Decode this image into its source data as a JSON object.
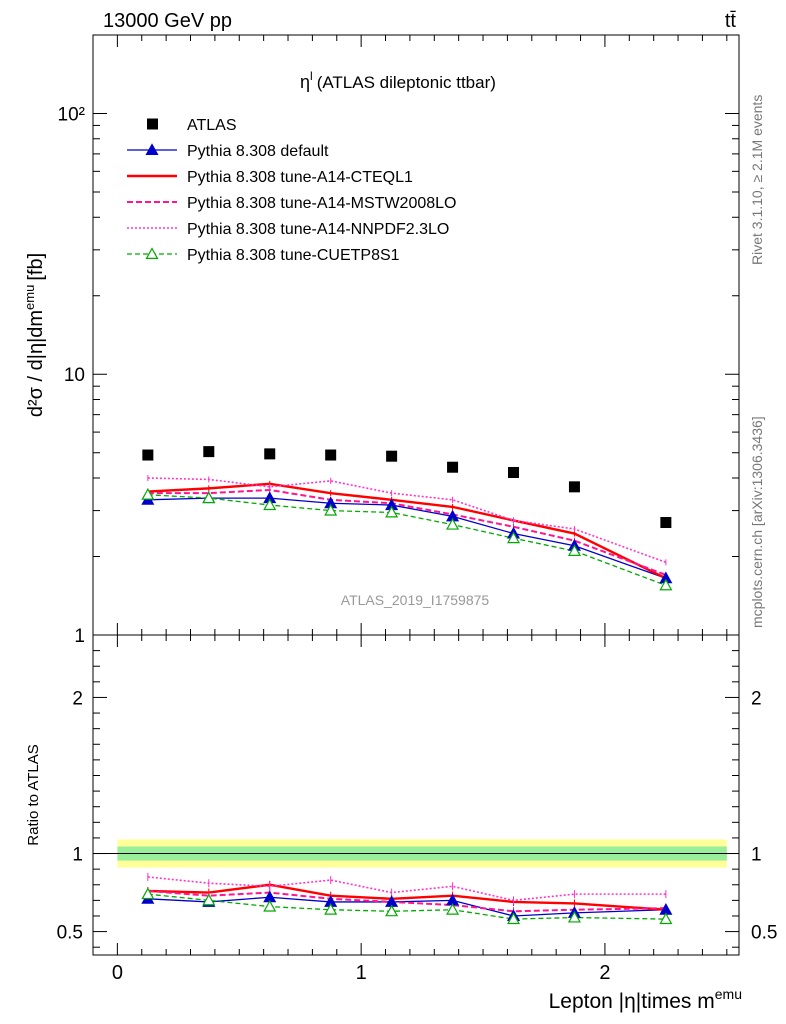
{
  "header": {
    "left": "13000 GeV pp",
    "right": "tt̄"
  },
  "side_text": {
    "rivet": "Rivet 3.1.10, ≥ 2.1M events",
    "mcplots": "mcplots.cern.ch [arXiv:1306.3436]"
  },
  "watermark": "ATLAS_2019_I1759875",
  "chart_data": {
    "type": "line",
    "title_main": "η",
    "title_sup": "l",
    "title_rest": "(ATLAS dileptonic ttbar)",
    "ylabel": "d²σ / d|η|dm",
    "ylabel_sup": "emu",
    "ylabel_unit": "[fb]",
    "xlabel": "Lepton |η|times m",
    "xlabel_sup": "emu",
    "ratio_ylabel": "Ratio to ATLAS",
    "xlim": [
      -0.1,
      2.55
    ],
    "ylim": [
      1,
      200
    ],
    "yscale": "log",
    "ratio_ylim": [
      0.35,
      2.4
    ],
    "x_ticks": [
      "0",
      "1",
      "2"
    ],
    "y_ticks": [
      "1",
      "10",
      "10²"
    ],
    "ratio_ticks": [
      "0.5",
      "1",
      "2"
    ],
    "legend_position": "top-left",
    "x": [
      0.125,
      0.375,
      0.625,
      0.875,
      1.125,
      1.375,
      1.625,
      1.875,
      2.25
    ],
    "data": {
      "name": "ATLAS",
      "values": [
        4.9,
        5.05,
        4.95,
        4.9,
        4.85,
        4.4,
        4.2,
        3.7,
        2.7
      ]
    },
    "series": [
      {
        "name": "Pythia 8.308 default",
        "color": "#0000cc",
        "dash": "",
        "width": 1.3,
        "marker": "triangle-filled",
        "values": [
          3.3,
          3.35,
          3.35,
          3.2,
          3.15,
          2.85,
          2.45,
          2.2,
          1.65
        ],
        "ratio": [
          0.71,
          0.69,
          0.72,
          0.69,
          0.69,
          0.7,
          0.6,
          0.62,
          0.64
        ]
      },
      {
        "name": "Pythia 8.308 tune-A14-CTEQL1",
        "color": "#ff0000",
        "dash": "",
        "width": 2.4,
        "marker": "none",
        "values": [
          3.55,
          3.65,
          3.8,
          3.5,
          3.3,
          3.1,
          2.75,
          2.45,
          1.65
        ],
        "ratio": [
          0.76,
          0.75,
          0.8,
          0.73,
          0.71,
          0.73,
          0.69,
          0.68,
          0.64
        ]
      },
      {
        "name": "Pythia 8.308 tune-A14-MSTW2008LO",
        "color": "#ff1493",
        "dash": "6,3",
        "width": 2.0,
        "marker": "none",
        "values": [
          3.5,
          3.5,
          3.6,
          3.3,
          3.2,
          2.9,
          2.6,
          2.3,
          1.7
        ],
        "ratio": [
          0.76,
          0.73,
          0.75,
          0.71,
          0.69,
          0.67,
          0.63,
          0.64,
          0.65
        ]
      },
      {
        "name": "Pythia 8.308 tune-A14-NNPDF2.3LO",
        "color": "#ff33cc",
        "dash": "2,2",
        "width": 1.6,
        "marker": "none",
        "values": [
          4.0,
          3.95,
          3.7,
          3.9,
          3.5,
          3.3,
          2.75,
          2.55,
          1.9
        ],
        "ratio": [
          0.85,
          0.81,
          0.79,
          0.83,
          0.75,
          0.79,
          0.7,
          0.74,
          0.74
        ]
      },
      {
        "name": "Pythia 8.308 tune-CUETP8S1",
        "color": "#00aa00",
        "dash": "5,3",
        "width": 1.3,
        "marker": "triangle-open",
        "values": [
          3.45,
          3.35,
          3.15,
          3.0,
          2.95,
          2.65,
          2.35,
          2.1,
          1.55
        ],
        "ratio": [
          0.74,
          0.7,
          0.66,
          0.64,
          0.63,
          0.64,
          0.58,
          0.59,
          0.58
        ]
      }
    ]
  }
}
